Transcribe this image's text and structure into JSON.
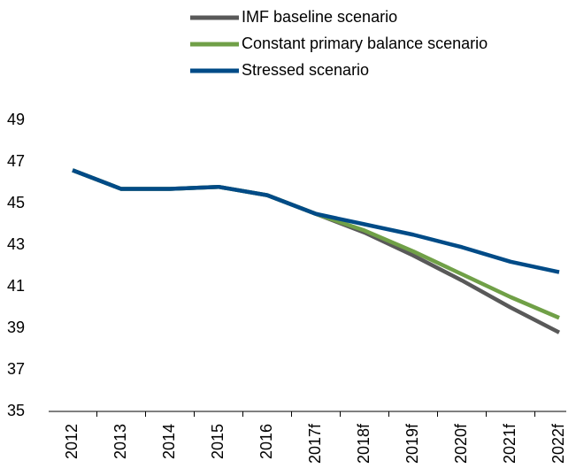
{
  "chart_data": {
    "type": "line",
    "categories": [
      "2012",
      "2013",
      "2014",
      "2015",
      "2016",
      "2017f",
      "2018f",
      "2019f",
      "2020f",
      "2021f",
      "2022f"
    ],
    "series": [
      {
        "name": "IMF baseline scenario",
        "color": "#595959",
        "values": [
          46.6,
          45.7,
          45.7,
          45.8,
          45.4,
          44.5,
          43.6,
          42.5,
          41.3,
          40.0,
          38.8
        ]
      },
      {
        "name": "Constant primary balance scenario",
        "color": "#70a047",
        "values": [
          46.6,
          45.7,
          45.7,
          45.8,
          45.4,
          44.5,
          43.7,
          42.7,
          41.6,
          40.5,
          39.5
        ]
      },
      {
        "name": "Stressed scenario",
        "color": "#004b87",
        "values": [
          46.6,
          45.7,
          45.7,
          45.8,
          45.4,
          44.5,
          44.0,
          43.5,
          42.9,
          42.2,
          41.7
        ]
      }
    ],
    "ylim": [
      35,
      49
    ],
    "yticks": [
      35,
      37,
      39,
      41,
      43,
      45,
      47,
      49
    ],
    "grid": false
  }
}
